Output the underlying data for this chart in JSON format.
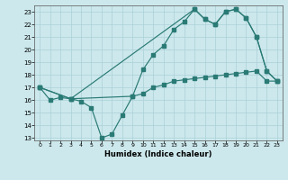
{
  "xlabel": "Humidex (Indice chaleur)",
  "bg_color": "#cce8ec",
  "line_color": "#2a7a75",
  "grid_color": "#aad0d8",
  "xlim": [
    -0.5,
    23.5
  ],
  "ylim": [
    12.8,
    23.5
  ],
  "yticks": [
    13,
    14,
    15,
    16,
    17,
    18,
    19,
    20,
    21,
    22,
    23
  ],
  "xticks": [
    0,
    1,
    2,
    3,
    4,
    5,
    6,
    7,
    8,
    9,
    10,
    11,
    12,
    13,
    14,
    15,
    16,
    17,
    18,
    19,
    20,
    21,
    22,
    23
  ],
  "line1_x": [
    0,
    1,
    2,
    3,
    4,
    5,
    6,
    7,
    8,
    9,
    10,
    11,
    12,
    13,
    14,
    15,
    16,
    17,
    18,
    19,
    20,
    21,
    22,
    23
  ],
  "line1_y": [
    17.0,
    16.0,
    16.2,
    16.1,
    15.9,
    15.4,
    13.0,
    13.3,
    14.8,
    16.3,
    16.5,
    17.0,
    17.2,
    17.5,
    17.6,
    17.7,
    17.8,
    17.9,
    18.0,
    18.1,
    18.2,
    18.3,
    17.5,
    17.5
  ],
  "line2_x": [
    0,
    3,
    9,
    10,
    11,
    12,
    13,
    14,
    15,
    16,
    17,
    18,
    19,
    20,
    21,
    22,
    23
  ],
  "line2_y": [
    17.0,
    16.1,
    16.3,
    18.4,
    19.6,
    20.3,
    21.6,
    22.2,
    23.2,
    22.4,
    22.0,
    23.0,
    23.2,
    22.5,
    21.0,
    18.3,
    17.5
  ],
  "line3_x": [
    0,
    3,
    15,
    16,
    17,
    18,
    19,
    20,
    21,
    22,
    23
  ],
  "line3_y": [
    17.0,
    16.1,
    23.2,
    22.4,
    22.0,
    23.0,
    23.2,
    22.5,
    21.0,
    18.3,
    17.5
  ]
}
